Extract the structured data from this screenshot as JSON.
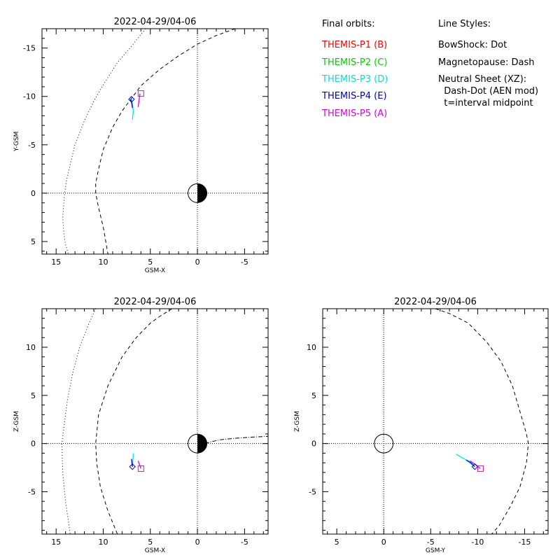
{
  "colors": {
    "P1": "#ff0000",
    "P2": "#00d000",
    "P3": "#00e8e8",
    "P4": "#0000c8",
    "P5": "#e000e0"
  },
  "legend": {
    "orbits_title": "Final orbits:",
    "orbits": [
      "THEMIS-P1 (B)",
      "THEMIS-P2 (C)",
      "THEMIS-P3 (D)",
      "THEMIS-P4 (E)",
      "THEMIS-P5 (A)"
    ],
    "styles_title": "Line Styles:",
    "styles": [
      "BowShock: Dot",
      "Magnetopause: Dash",
      "Neutral Sheet (XZ):",
      "  Dash-Dot (AEN mod)",
      "  t=interval midpoint"
    ]
  },
  "chart_data": [
    {
      "type": "line",
      "title": "2022-04-29/04-06",
      "xlabel": "GSM-X",
      "ylabel": "Y-GSM",
      "xlim": [
        16.5,
        -7.5
      ],
      "ylim": [
        6.3,
        -17
      ],
      "xticks": [
        15,
        10,
        5,
        0,
        -5
      ],
      "yticks": [
        -15,
        -10,
        -5,
        0,
        5
      ],
      "bowshock": {
        "x": [
          5.5,
          7,
          8.5,
          10,
          11,
          12,
          13,
          13.5,
          13.9,
          14.1,
          14.3,
          14.2,
          14.0,
          13.7
        ],
        "y": [
          -17,
          -15.2,
          -13.5,
          -11.2,
          -9.5,
          -7.5,
          -5,
          -3,
          -1.3,
          0,
          2.5,
          4,
          5.3,
          6.3
        ]
      },
      "magnetopause": {
        "x": [
          -4,
          -2,
          0,
          2,
          4,
          6,
          7,
          8,
          9,
          10,
          10.5,
          10.8,
          10.8,
          10.5,
          10,
          9.5
        ],
        "y": [
          -17,
          -16.3,
          -15.4,
          -14.2,
          -12.8,
          -11.1,
          -9.8,
          -8.5,
          -6.8,
          -4.5,
          -2.5,
          -1,
          0,
          1.5,
          3.5,
          6.3
        ]
      },
      "earth": {
        "x": 0,
        "y": 0,
        "r": 1
      },
      "series": [
        {
          "name": "THEMIS-P3 (D)",
          "color": "#00e8e8",
          "x": [
            7.0,
            6.9,
            6.8,
            6.9
          ],
          "y": [
            -9.7,
            -9.2,
            -8.5,
            -7.6
          ]
        },
        {
          "name": "THEMIS-P4 (E)",
          "color": "#0000c8",
          "x": [
            7.1,
            6.95,
            6.9
          ],
          "y": [
            -9.7,
            -9.2,
            -8.8
          ]
        },
        {
          "name": "THEMIS-P5 (A)",
          "color": "#e000e0",
          "x": [
            6.1,
            6.2,
            6.3
          ],
          "y": [
            -10.3,
            -9.6,
            -8.9
          ]
        }
      ],
      "endpoints": [
        {
          "name": "THEMIS-P4 (E)",
          "x": 7.0,
          "y": -9.7,
          "symbol": "diamond",
          "color": "#0000c8"
        },
        {
          "name": "THEMIS-P5 (A)",
          "x": 6.0,
          "y": -10.3,
          "symbol": "square",
          "color": "#e000e0"
        }
      ]
    },
    {
      "type": "line",
      "title": "2022-04-29/04-06",
      "xlabel": "GSM-X",
      "ylabel": "Z-GSM",
      "xlim": [
        16.5,
        -7.5
      ],
      "ylim": [
        -9.4,
        14
      ],
      "xticks": [
        15,
        10,
        5,
        0,
        -5
      ],
      "yticks": [
        10,
        5,
        0,
        -5
      ],
      "bowshock": {
        "x": [
          10.8,
          11.5,
          12.5,
          13.2,
          13.8,
          14.2,
          14.4,
          14.3,
          14.0,
          13.5
        ],
        "y": [
          14,
          12.5,
          10,
          7.5,
          4.5,
          1.5,
          0,
          -3,
          -6,
          -9.4
        ]
      },
      "magnetopause": {
        "x": [
          2.7,
          4,
          5,
          6.5,
          8,
          9.5,
          10.5,
          10.8,
          10.7,
          10.3,
          9.5,
          8.5
        ],
        "y": [
          14,
          13.2,
          12.5,
          11,
          9,
          6,
          3,
          0,
          -2,
          -4.5,
          -7,
          -9.4
        ]
      },
      "neutral_sheet": {
        "x": [
          -0.8,
          -1.5,
          -2.5,
          -4,
          -5.5,
          -7.5
        ],
        "y": [
          0,
          0.2,
          0.4,
          0.55,
          0.65,
          0.75
        ]
      },
      "earth": {
        "x": 0,
        "y": 0,
        "r": 1
      },
      "series": [
        {
          "name": "THEMIS-P3 (D)",
          "color": "#00e8e8",
          "x": [
            6.8,
            6.85,
            6.9
          ],
          "y": [
            -1.0,
            -1.6,
            -2.4
          ]
        },
        {
          "name": "THEMIS-P4 (E)",
          "color": "#0000c8",
          "x": [
            7.0,
            6.95,
            6.9
          ],
          "y": [
            -1.6,
            -2.0,
            -2.4
          ]
        },
        {
          "name": "THEMIS-P5 (A)",
          "color": "#e000e0",
          "x": [
            6.3,
            6.15,
            6.0
          ],
          "y": [
            -1.8,
            -2.2,
            -2.6
          ]
        }
      ],
      "endpoints": [
        {
          "name": "THEMIS-P4 (E)",
          "x": 6.9,
          "y": -2.4,
          "symbol": "diamond",
          "color": "#0000c8"
        },
        {
          "name": "THEMIS-P5 (A)",
          "x": 6.0,
          "y": -2.6,
          "symbol": "square",
          "color": "#e000e0"
        }
      ]
    },
    {
      "type": "line",
      "title": "2022-04-29/04-06",
      "xlabel": "GSM-Y",
      "ylabel": "Z-GSM",
      "xlim": [
        6.5,
        -17.5
      ],
      "ylim": [
        -9.4,
        14
      ],
      "xticks": [
        5,
        0,
        -5,
        -10,
        -15
      ],
      "yticks": [
        10,
        5,
        0,
        -5
      ],
      "magnetopause": {
        "x": [
          -5.5,
          -7,
          -9,
          -11,
          -12.5,
          -13.7,
          -14.6,
          -15.2,
          -15.4,
          -15.2,
          -14.5,
          -13.5,
          -12.3,
          -11.5
        ],
        "y": [
          14,
          13.5,
          12.5,
          10.5,
          8.5,
          6,
          3,
          1,
          0,
          -2,
          -4.5,
          -6.5,
          -8.5,
          -9.4
        ]
      },
      "earth": {
        "x": 0,
        "y": 0,
        "r": 1
      },
      "series": [
        {
          "name": "THEMIS-P3 (D)",
          "color": "#00e8e8",
          "x": [
            -7.7,
            -8.6,
            -9.7
          ],
          "y": [
            -1.1,
            -1.6,
            -2.4
          ]
        },
        {
          "name": "THEMIS-P4 (E)",
          "color": "#0000c8",
          "x": [
            -8.8,
            -9.3,
            -9.7
          ],
          "y": [
            -1.7,
            -2.0,
            -2.4
          ]
        },
        {
          "name": "THEMIS-P5 (A)",
          "color": "#e000e0",
          "x": [
            -9.2,
            -9.8,
            -10.3
          ],
          "y": [
            -1.8,
            -2.2,
            -2.6
          ]
        }
      ],
      "endpoints": [
        {
          "name": "THEMIS-P4 (E)",
          "x": -9.7,
          "y": -2.4,
          "symbol": "diamond",
          "color": "#0000c8"
        },
        {
          "name": "THEMIS-P5 (A)",
          "x": -10.3,
          "y": -2.6,
          "symbol": "square",
          "color": "#e000e0"
        }
      ]
    }
  ]
}
